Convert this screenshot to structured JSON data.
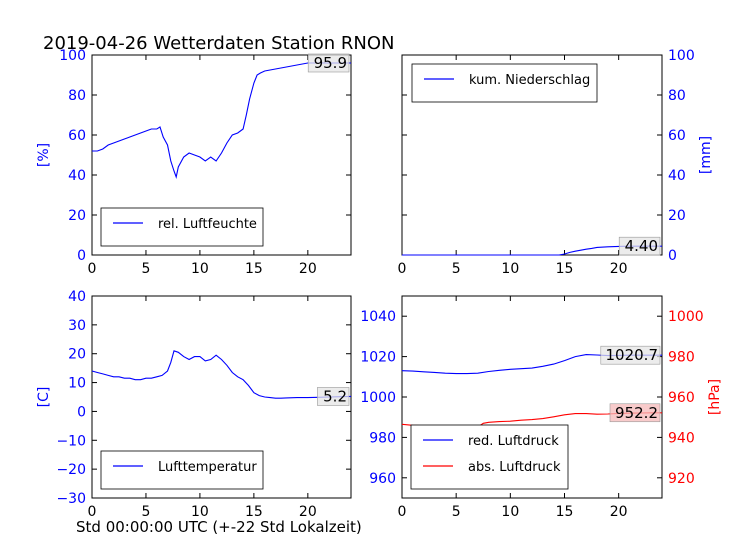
{
  "figure": {
    "title": "2019-04-26 Wetterdaten Station RNON",
    "xlabel": "Std 00:00:00 UTC (+-22 Std Lokalzeit)"
  },
  "colors": {
    "blue": "#0000ff",
    "red": "#ff0000",
    "box_fill_red": "#f5b9b9",
    "box_fill_gray": "#e6e6e6"
  },
  "chart_data": [
    {
      "id": "humidity",
      "type": "line",
      "ylabel": "[%]",
      "ylim": [
        0,
        100
      ],
      "yticks": [
        "0",
        "20",
        "40",
        "60",
        "80",
        "100"
      ],
      "xlim": [
        0,
        24
      ],
      "xticks": [
        "0",
        "5",
        "10",
        "15",
        "20"
      ],
      "legend": "lower-left",
      "series": [
        {
          "name": "rel. Luftfeuchte",
          "color": "#0000ff",
          "x": [
            0,
            0.5,
            1,
            1.5,
            2,
            2.5,
            3,
            3.5,
            4,
            4.5,
            5,
            5.5,
            6,
            6.3,
            6.6,
            7,
            7.3,
            7.6,
            7.8,
            8,
            8.5,
            9,
            9.5,
            10,
            10.5,
            11,
            11.5,
            12,
            12.5,
            13,
            13.5,
            14,
            14.3,
            14.6,
            15,
            15.3,
            15.6,
            16,
            17,
            18,
            19,
            20,
            21,
            22,
            23,
            24
          ],
          "y": [
            52,
            52,
            53,
            55,
            56,
            57,
            58,
            59,
            60,
            61,
            62,
            63,
            63,
            64,
            59,
            55,
            47,
            42,
            39,
            44,
            49,
            51,
            50,
            49,
            47,
            49,
            47,
            51,
            56,
            60,
            61,
            63,
            70,
            78,
            86,
            90,
            91,
            92,
            93,
            94,
            95,
            96,
            96,
            96,
            96,
            96
          ]
        }
      ],
      "annotation": "95.9"
    },
    {
      "id": "precip",
      "type": "line",
      "ylabel": "[mm]",
      "ylim": [
        0,
        100
      ],
      "yticks": [
        "0",
        "20",
        "40",
        "60",
        "80",
        "100"
      ],
      "xlim": [
        0,
        24
      ],
      "xticks": [
        "0",
        "5",
        "10",
        "15",
        "20"
      ],
      "legend": "upper-left",
      "series": [
        {
          "name": "kum. Niederschlag",
          "color": "#0000ff",
          "x": [
            0,
            14.5,
            15,
            15.5,
            16,
            16.5,
            17,
            17.5,
            18,
            19,
            20,
            21,
            22,
            23,
            24
          ],
          "y": [
            0,
            0,
            0.5,
            1.3,
            1.9,
            2.4,
            2.9,
            3.3,
            3.8,
            4.1,
            4.3,
            4.4,
            4.4,
            4.4,
            4.4
          ]
        }
      ],
      "annotation": "4.40"
    },
    {
      "id": "temperature",
      "type": "line",
      "ylabel": "[C]",
      "ylim": [
        -30,
        40
      ],
      "yticks": [
        "−30",
        "−20",
        "−10",
        "0",
        "10",
        "20",
        "30",
        "40"
      ],
      "xlim": [
        0,
        24
      ],
      "xticks": [
        "0",
        "5",
        "10",
        "15",
        "20"
      ],
      "legend": "lower-left",
      "series": [
        {
          "name": "Lufttemperatur",
          "color": "#0000ff",
          "x": [
            0,
            0.5,
            1,
            1.5,
            2,
            2.5,
            3,
            3.5,
            4,
            4.5,
            5,
            5.5,
            6,
            6.5,
            7,
            7.3,
            7.6,
            8,
            8.5,
            9,
            9.5,
            10,
            10.5,
            11,
            11.5,
            12,
            12.5,
            13,
            13.5,
            14,
            14.5,
            15,
            15.5,
            16,
            16.5,
            17,
            17.5,
            18,
            19,
            20,
            21,
            22,
            23,
            24
          ],
          "y": [
            14,
            13.5,
            13,
            12.5,
            12,
            12,
            11.5,
            11.5,
            11,
            11,
            11.5,
            11.5,
            12,
            12.5,
            14,
            17,
            21,
            20.5,
            19,
            18,
            19,
            19,
            17.5,
            18,
            19.5,
            18,
            16,
            13.5,
            12,
            11,
            9,
            6.5,
            5.5,
            5,
            4.8,
            4.6,
            4.6,
            4.7,
            4.8,
            4.8,
            4.9,
            5,
            5.1,
            5.2
          ]
        }
      ],
      "annotation": "5.2"
    },
    {
      "id": "pressure",
      "type": "line",
      "ylim": [
        950,
        1050
      ],
      "yticks": [
        "960",
        "980",
        "1000",
        "1020",
        "1040"
      ],
      "y2label": "[hPa]",
      "y2lim": [
        910,
        1010
      ],
      "y2ticks": [
        "920",
        "940",
        "960",
        "980",
        "1000"
      ],
      "xlim": [
        0,
        24
      ],
      "xticks": [
        "0",
        "5",
        "10",
        "15",
        "20"
      ],
      "legend": "lower-left",
      "series": [
        {
          "name": "red. Luftdruck",
          "color": "#0000ff",
          "axis": "left",
          "x": [
            0,
            1,
            2,
            3,
            4,
            5,
            6,
            7,
            8,
            9,
            10,
            11,
            12,
            13,
            14,
            15,
            16,
            17,
            18,
            19,
            20,
            21,
            22,
            23,
            24
          ],
          "y": [
            1013,
            1012.8,
            1012.5,
            1012.2,
            1011.8,
            1011.6,
            1011.6,
            1011.8,
            1012.6,
            1013.2,
            1013.7,
            1014,
            1014.3,
            1015.2,
            1016.3,
            1018,
            1020,
            1021,
            1020.8,
            1020.5,
            1020.6,
            1020.7,
            1020.7,
            1020.7,
            1020.7
          ]
        },
        {
          "name": "abs. Luftdruck",
          "color": "#ff0000",
          "axis": "right",
          "x": [
            0,
            1,
            2,
            3,
            4,
            5,
            6,
            7,
            7.5,
            8,
            9,
            10,
            11,
            12,
            13,
            14,
            15,
            16,
            17,
            18,
            19,
            20,
            21,
            22,
            23,
            24
          ],
          "y": [
            946.5,
            946,
            945.8,
            945.3,
            944.9,
            944.6,
            944.6,
            945.2,
            947,
            947.5,
            947.8,
            948,
            948.5,
            948.8,
            949.3,
            950.2,
            951.2,
            951.8,
            951.8,
            951.5,
            951.6,
            951.9,
            952,
            952.1,
            952.2,
            952.2
          ]
        }
      ],
      "annotations": [
        "1020.7",
        "952.2"
      ]
    }
  ]
}
